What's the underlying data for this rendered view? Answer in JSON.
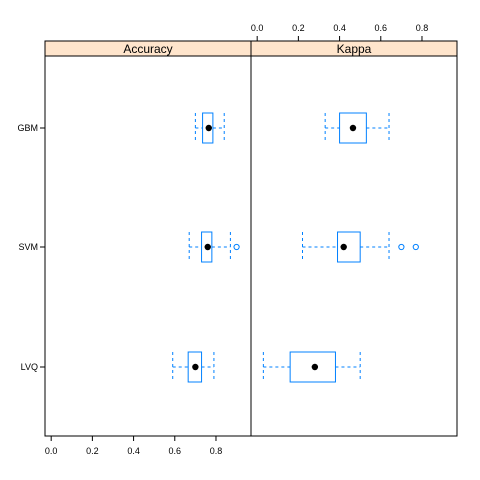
{
  "chart_data": {
    "type": "boxplot",
    "panels": [
      {
        "name": "Accuracy",
        "xlim": [
          -0.03,
          0.97
        ],
        "ticks": [
          "0.0",
          "0.2",
          "0.4",
          "0.6",
          "0.8"
        ],
        "tick_values": [
          0,
          0.2,
          0.4,
          0.6,
          0.8
        ],
        "tick_side": "bottom",
        "boxes": [
          {
            "category": "GBM",
            "whisker_low": 0.7,
            "q1": 0.735,
            "median": 0.765,
            "q3": 0.785,
            "whisker_high": 0.84,
            "outliers": []
          },
          {
            "category": "SVM",
            "whisker_low": 0.67,
            "q1": 0.73,
            "median": 0.76,
            "q3": 0.78,
            "whisker_high": 0.87,
            "outliers": [
              0.9
            ]
          },
          {
            "category": "LVQ",
            "whisker_low": 0.59,
            "q1": 0.665,
            "median": 0.7,
            "q3": 0.73,
            "whisker_high": 0.79,
            "outliers": []
          }
        ]
      },
      {
        "name": "Kappa",
        "xlim": [
          -0.03,
          0.97
        ],
        "ticks": [
          "0.0",
          "0.2",
          "0.4",
          "0.6",
          "0.8"
        ],
        "tick_values": [
          0,
          0.2,
          0.4,
          0.6,
          0.8
        ],
        "tick_side": "top",
        "boxes": [
          {
            "category": "GBM",
            "whisker_low": 0.33,
            "q1": 0.4,
            "median": 0.465,
            "q3": 0.53,
            "whisker_high": 0.64,
            "outliers": []
          },
          {
            "category": "SVM",
            "whisker_low": 0.22,
            "q1": 0.39,
            "median": 0.42,
            "q3": 0.5,
            "whisker_high": 0.64,
            "outliers": [
              0.7,
              0.77
            ]
          },
          {
            "category": "LVQ",
            "whisker_low": 0.03,
            "q1": 0.16,
            "median": 0.28,
            "q3": 0.38,
            "whisker_high": 0.5,
            "outliers": []
          }
        ]
      }
    ],
    "categories": [
      "GBM",
      "SVM",
      "LVQ"
    ],
    "title": "",
    "xlabel": "",
    "ylabel": "",
    "grid": false
  },
  "colors": {
    "strip_fill": "#ffe5cc",
    "box_stroke": "#0080ff",
    "median_dot": "#000000",
    "frame": "#000000"
  }
}
